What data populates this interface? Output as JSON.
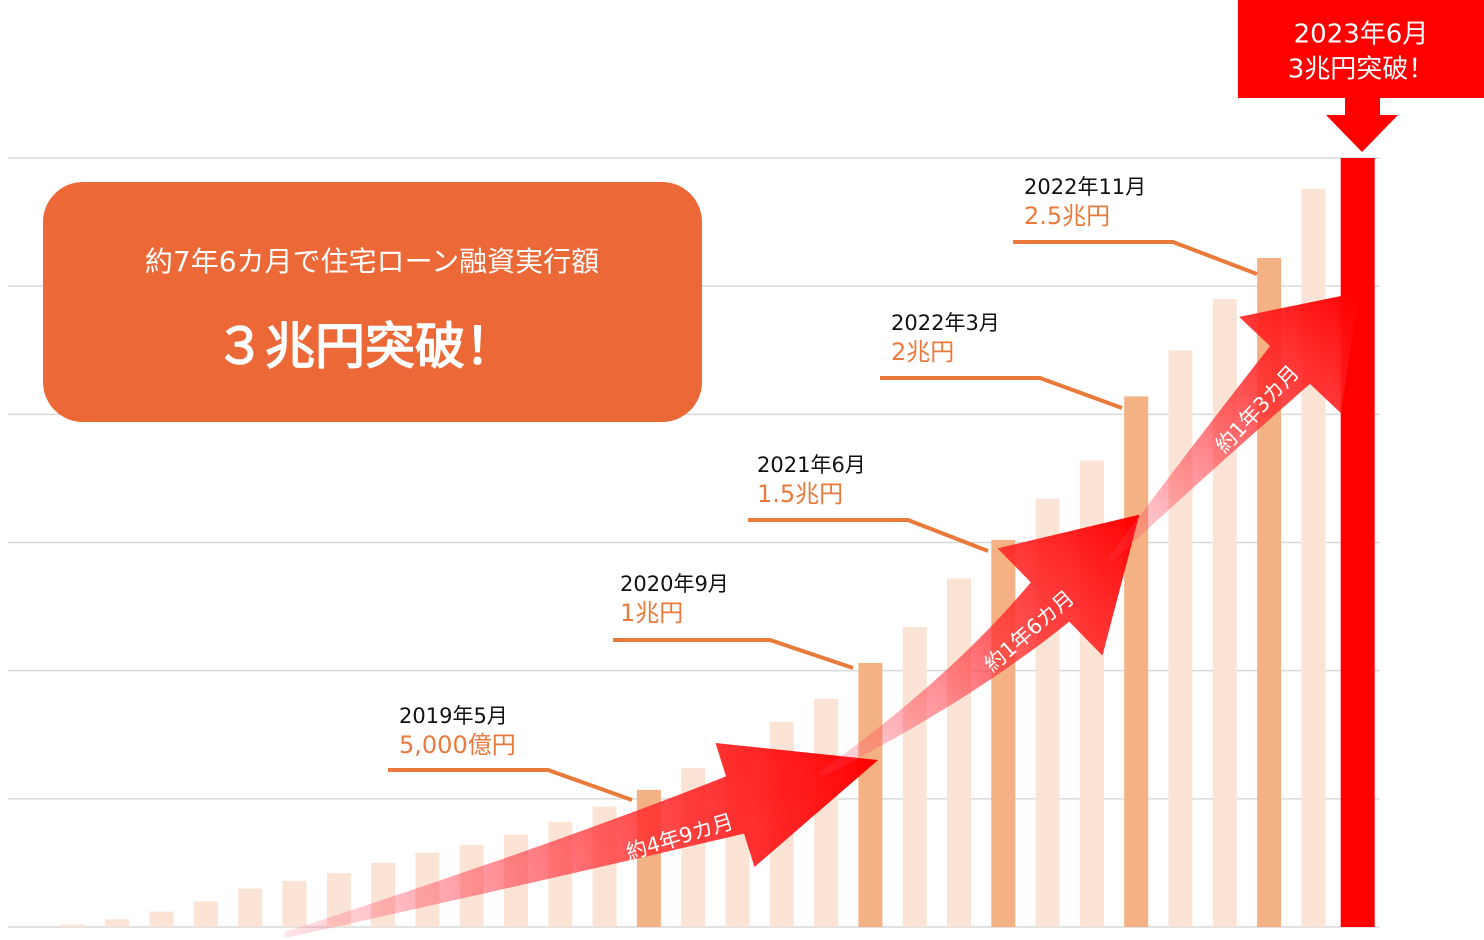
{
  "chart_data": {
    "type": "bar",
    "categories": [
      null,
      null,
      null,
      null,
      null,
      null,
      null,
      null,
      null,
      null,
      null,
      null,
      null,
      null,
      null,
      null,
      null,
      null,
      null,
      null,
      null,
      null,
      null,
      null,
      null,
      null,
      null,
      null,
      null,
      null
    ],
    "values": [
      0.01,
      0.03,
      0.06,
      0.1,
      0.15,
      0.18,
      0.21,
      0.25,
      0.29,
      0.32,
      0.36,
      0.41,
      0.47,
      0.535,
      0.62,
      0.68,
      0.8,
      0.89,
      1.03,
      1.17,
      1.36,
      1.51,
      1.67,
      1.82,
      2.07,
      2.25,
      2.45,
      2.61,
      2.88,
      3.0
    ],
    "colors": [
      "#fbe4d6",
      "#fbe4d6",
      "#fbe4d6",
      "#fbe4d6",
      "#fbe4d6",
      "#fbe4d6",
      "#fbe4d6",
      "#fbe4d6",
      "#fbe4d6",
      "#fbe4d6",
      "#fbe4d6",
      "#fbe4d6",
      "#fbe4d6",
      "#f4b183",
      "#fbe4d6",
      "#fbe4d6",
      "#fbe4d6",
      "#fbe4d6",
      "#f4b183",
      "#fbe4d6",
      "#fbe4d6",
      "#f4b183",
      "#fbe4d6",
      "#fbe4d6",
      "#f4b183",
      "#fbe4d6",
      "#fbe4d6",
      "#f4b183",
      "#fbe4d6",
      "#ff0000"
    ],
    "ylim": [
      0,
      3
    ],
    "yticks": [
      0,
      0.5,
      1,
      1.5,
      2,
      2.5,
      3
    ],
    "grid": true,
    "headline": {
      "subtitle": "約7年6カ月で住宅ローン融資実行額",
      "title": "３兆円突破！"
    },
    "callout": {
      "date": "2023年6月",
      "text": "3兆円突破！"
    },
    "annotations": [
      {
        "date": "2019年5月",
        "amount": "5,000億円"
      },
      {
        "date": "2020年9月",
        "amount": "1兆円"
      },
      {
        "date": "2021年6月",
        "amount": "1.5兆円"
      },
      {
        "date": "2022年3月",
        "amount": "2兆円"
      },
      {
        "date": "2022年11月",
        "amount": "2.5兆円"
      }
    ],
    "periods": [
      "約4年9カ月",
      "約1年6カ月",
      "約1年3カ月"
    ]
  }
}
